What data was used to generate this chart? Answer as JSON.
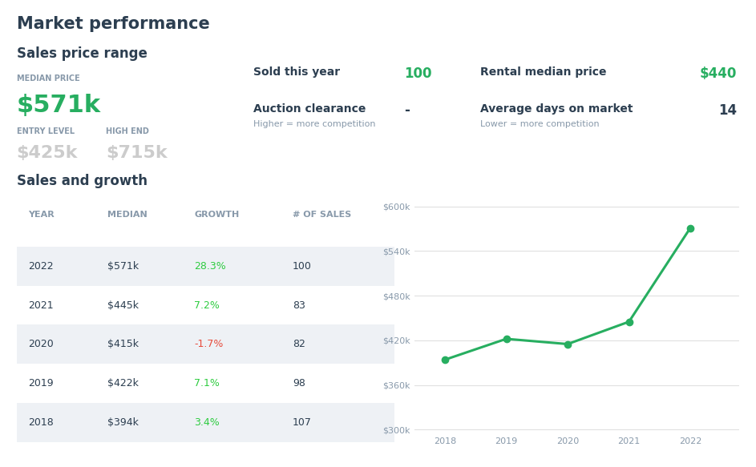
{
  "title": "Market performance",
  "section1_title": "Sales price range",
  "median_price_label": "MEDIAN PRICE",
  "median_price_value": "$571k",
  "entry_level_label": "ENTRY LEVEL",
  "entry_level_value": "$425k",
  "high_end_label": "HIGH END",
  "high_end_value": "$715k",
  "sold_this_year_label": "Sold this year",
  "sold_this_year_value": "100",
  "rental_median_label": "Rental median price",
  "rental_median_value": "$440",
  "auction_clearance_label": "Auction clearance",
  "auction_clearance_sub": "Higher = more competition",
  "auction_clearance_value": "-",
  "avg_days_label": "Average days on market",
  "avg_days_sub": "Lower = more competition",
  "avg_days_value": "14",
  "section2_title": "Sales and growth",
  "table_headers": [
    "YEAR",
    "MEDIAN",
    "GROWTH",
    "# OF SALES"
  ],
  "table_data": [
    [
      "2022",
      "$571k",
      "28.3%",
      "100"
    ],
    [
      "2021",
      "$445k",
      "7.2%",
      "83"
    ],
    [
      "2020",
      "$415k",
      "-1.7%",
      "82"
    ],
    [
      "2019",
      "$422k",
      "7.1%",
      "98"
    ],
    [
      "2018",
      "$394k",
      "3.4%",
      "107"
    ]
  ],
  "growth_colors": [
    "#2ecc40",
    "#2ecc40",
    "#e74c3c",
    "#2ecc40",
    "#2ecc40"
  ],
  "chart_years": [
    2018,
    2019,
    2020,
    2021,
    2022
  ],
  "chart_values": [
    394000,
    422000,
    415000,
    445000,
    571000
  ],
  "chart_color": "#27ae60",
  "bg_color": "#ffffff",
  "title_color": "#2c3e50",
  "section_title_color": "#2c3e50",
  "label_color": "#8899aa",
  "value_color": "#cccccc",
  "green_color": "#27ae60",
  "dark_color": "#2c3e50",
  "row_alt_color": "#eef1f5",
  "divider_color": "#dddddd",
  "line_accent_color": "#aabbcc"
}
